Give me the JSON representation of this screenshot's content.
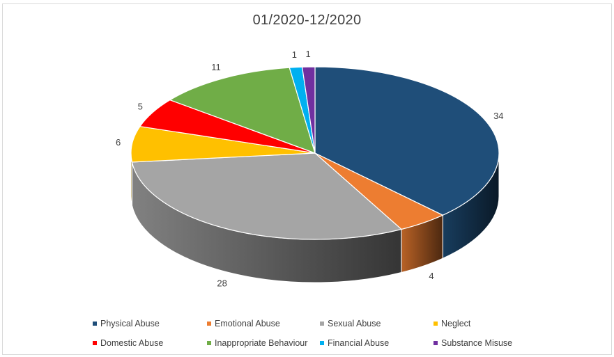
{
  "chart_data": {
    "type": "pie",
    "title": "01/2020-12/2020",
    "labels": [
      "Physical Abuse",
      "Emotional Abuse",
      "Sexual Abuse",
      "Neglect",
      "Domestic Abuse",
      "Inappropriate Behaviour",
      "Financial Abuse",
      "Substance Misuse"
    ],
    "values": [
      34,
      4,
      28,
      6,
      5,
      11,
      1,
      1
    ],
    "colors": [
      "#1f4e79",
      "#ed7d31",
      "#a5a5a5",
      "#ffc000",
      "#ff0000",
      "#70ad47",
      "#00b0f0",
      "#7030a0"
    ],
    "data_labels": [
      "34",
      "4",
      "28",
      "6",
      "5",
      "11",
      "1",
      "1"
    ],
    "legend_position": "bottom",
    "style": "3d"
  }
}
